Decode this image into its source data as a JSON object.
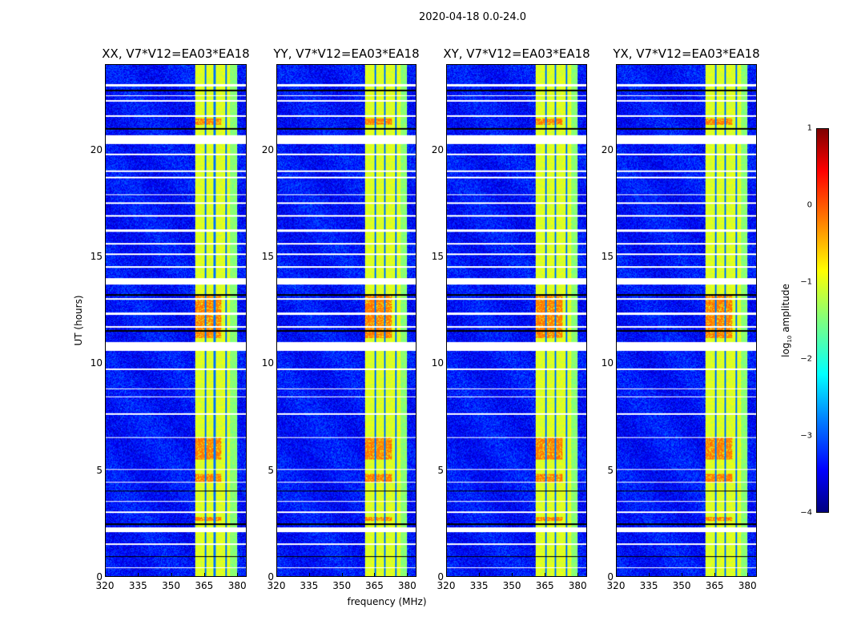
{
  "chart_data": {
    "type": "heatmap",
    "title": "2020-04-18 0.0-24.0",
    "xlabel": "frequency (MHz)",
    "ylabel": "UT (hours)",
    "xlim": [
      320,
      384.3
    ],
    "ylim": [
      0,
      24
    ],
    "xticks": [
      320,
      335,
      350,
      365,
      380
    ],
    "yticks": [
      0,
      5,
      10,
      15,
      20
    ],
    "panels": [
      {
        "title": "XX, V7*V12=EA03*EA18"
      },
      {
        "title": "YY, V7*V12=EA03*EA18"
      },
      {
        "title": "XY, V7*V12=EA03*EA18"
      },
      {
        "title": "YX, V7*V12=EA03*EA18"
      }
    ],
    "colorbar": {
      "label_prefix": "log",
      "label_sub": "10",
      "label_suffix": " amplitude",
      "range": [
        -4,
        1
      ],
      "ticks": [
        "1",
        "0",
        "−1",
        "−2",
        "−3",
        "−4"
      ],
      "colormap": "jet"
    },
    "background_level": -3.3,
    "band": {
      "freq_range": [
        360.7,
        380
      ],
      "level": -1.2,
      "channel_gaps_mhz": [
        365.5,
        369.8,
        374.9
      ]
    },
    "hot_intervals_hours": [
      [
        5.5,
        6.5
      ],
      [
        4.4,
        4.8
      ],
      [
        2.6,
        2.8
      ],
      [
        21.2,
        21.5
      ],
      [
        11.2,
        13.2
      ]
    ],
    "flagged_intervals_hours": [
      [
        23.0,
        23.1
      ],
      [
        22.55,
        22.6
      ],
      [
        22.3,
        22.35
      ],
      [
        21.6,
        21.65
      ],
      [
        20.3,
        20.7
      ],
      [
        19.8,
        19.85
      ],
      [
        19.0,
        19.05
      ],
      [
        18.7,
        18.75
      ],
      [
        17.9,
        17.95
      ],
      [
        17.5,
        17.55
      ],
      [
        16.9,
        16.95
      ],
      [
        16.2,
        16.3
      ],
      [
        15.6,
        15.65
      ],
      [
        15.1,
        15.15
      ],
      [
        14.5,
        14.55
      ],
      [
        13.7,
        14.0
      ],
      [
        13.0,
        13.05
      ],
      [
        12.3,
        12.4
      ],
      [
        11.7,
        11.75
      ],
      [
        10.6,
        11.0
      ],
      [
        9.7,
        9.75
      ],
      [
        8.8,
        8.85
      ],
      [
        8.4,
        8.45
      ],
      [
        7.6,
        7.65
      ],
      [
        6.5,
        6.55
      ],
      [
        5.0,
        5.05
      ],
      [
        4.4,
        4.45
      ],
      [
        3.5,
        3.55
      ],
      [
        3.0,
        3.05
      ],
      [
        2.1,
        2.3
      ],
      [
        1.5,
        1.55
      ],
      [
        0.4,
        0.45
      ]
    ],
    "dark_intervals_hours": [
      [
        2.4,
        2.5
      ],
      [
        0.9,
        0.95
      ],
      [
        4.0,
        4.03
      ],
      [
        11.5,
        11.55
      ],
      [
        13.2,
        13.25
      ],
      [
        21.0,
        21.05
      ],
      [
        22.8,
        22.85
      ]
    ]
  }
}
